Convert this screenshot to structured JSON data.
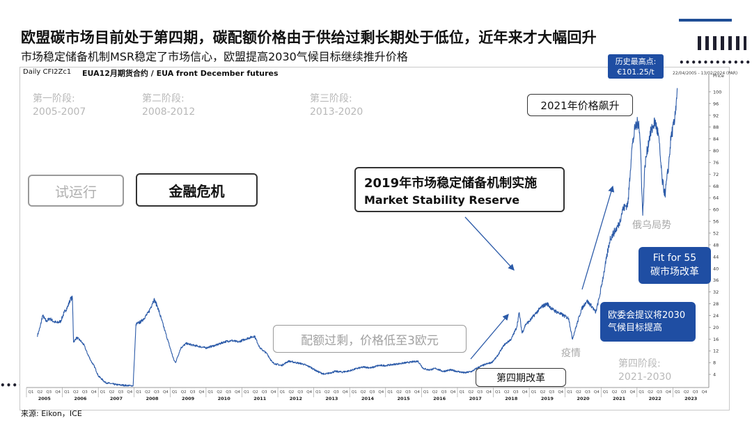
{
  "header": {
    "title": "欧盟碳市场目前处于第四期，碳配额价格由于供给过剩长期处于低位，近年来才大幅回升",
    "subtitle": "市场稳定储备机制MSR稳定了市场信心，欧盟提高2030气候目标继续推升价格"
  },
  "colors": {
    "accent": "#1f4ea3",
    "line": "#2b5aa8",
    "phase_gray": "#b8b8b8"
  },
  "chart_data": {
    "type": "line",
    "instrument": "Daily CFI2Zc1",
    "title": "EUA12月期货合约 / EUA front December futures",
    "date_range": "22/04/2005 - 13/02/2024 (PAR)",
    "ylabel": "Price",
    "unit": "Euro",
    "ylim": [
      0,
      104
    ],
    "yticks": [
      4,
      8,
      12,
      16,
      20,
      24,
      28,
      32,
      36,
      40,
      44,
      48,
      52,
      56,
      60,
      64,
      68,
      72,
      76,
      80,
      84,
      88,
      92,
      96,
      100
    ],
    "ytick_labels": [
      "4",
      "8",
      "12",
      "16",
      "20",
      "24",
      "28",
      "32",
      "36",
      "40",
      "44",
      "48",
      "52",
      "56",
      "60",
      "64",
      "68",
      "72",
      "76",
      "80",
      "84",
      "88",
      "92",
      "96",
      "100"
    ],
    "xlim": [
      2005.0,
      2024.0
    ],
    "year_labels": [
      "2005",
      "2006",
      "2007",
      "2008",
      "2009",
      "2010",
      "2011",
      "2012",
      "2013",
      "2014",
      "2015",
      "2016",
      "2017",
      "2018",
      "2019",
      "2020",
      "2021",
      "2022",
      "2023"
    ],
    "quarter_labels": [
      "Q1",
      "Q2",
      "Q3",
      "Q4"
    ],
    "series": [
      {
        "name": "EUA front December futures",
        "points": [
          [
            2005.3,
            17.0
          ],
          [
            2005.38,
            20.0
          ],
          [
            2005.45,
            24.0
          ],
          [
            2005.55,
            22.0
          ],
          [
            2005.65,
            23.0
          ],
          [
            2005.75,
            22.0
          ],
          [
            2005.85,
            21.5
          ],
          [
            2005.95,
            22.0
          ],
          [
            2006.05,
            25.0
          ],
          [
            2006.15,
            27.0
          ],
          [
            2006.22,
            29.5
          ],
          [
            2006.28,
            30.0
          ],
          [
            2006.31,
            15.0
          ],
          [
            2006.4,
            16.5
          ],
          [
            2006.5,
            15.5
          ],
          [
            2006.6,
            14.0
          ],
          [
            2006.7,
            11.0
          ],
          [
            2006.8,
            8.5
          ],
          [
            2006.9,
            6.5
          ],
          [
            2007.0,
            3.5
          ],
          [
            2007.2,
            1.2
          ],
          [
            2007.5,
            0.5
          ],
          [
            2007.8,
            0.2
          ],
          [
            2007.97,
            0.1
          ],
          [
            2008.05,
            21.0
          ],
          [
            2008.2,
            22.0
          ],
          [
            2008.4,
            25.0
          ],
          [
            2008.5,
            28.0
          ],
          [
            2008.55,
            29.5
          ],
          [
            2008.65,
            27.0
          ],
          [
            2008.75,
            23.0
          ],
          [
            2008.85,
            19.0
          ],
          [
            2008.95,
            15.0
          ],
          [
            2009.1,
            9.0
          ],
          [
            2009.15,
            8.0
          ],
          [
            2009.3,
            13.0
          ],
          [
            2009.45,
            14.5
          ],
          [
            2009.6,
            14.0
          ],
          [
            2009.8,
            13.5
          ],
          [
            2010.0,
            13.0
          ],
          [
            2010.3,
            14.0
          ],
          [
            2010.5,
            15.0
          ],
          [
            2010.7,
            15.5
          ],
          [
            2010.9,
            15.0
          ],
          [
            2011.1,
            16.0
          ],
          [
            2011.35,
            17.0
          ],
          [
            2011.5,
            13.0
          ],
          [
            2011.7,
            11.0
          ],
          [
            2011.85,
            8.0
          ],
          [
            2011.95,
            7.5
          ],
          [
            2012.1,
            7.0
          ],
          [
            2012.3,
            8.5
          ],
          [
            2012.5,
            8.0
          ],
          [
            2012.7,
            7.5
          ],
          [
            2012.9,
            6.5
          ],
          [
            2013.1,
            5.0
          ],
          [
            2013.3,
            4.0
          ],
          [
            2013.45,
            4.5
          ],
          [
            2013.6,
            5.0
          ],
          [
            2013.8,
            4.8
          ],
          [
            2014.0,
            5.2
          ],
          [
            2014.2,
            6.0
          ],
          [
            2014.4,
            6.5
          ],
          [
            2014.6,
            6.2
          ],
          [
            2014.8,
            7.0
          ],
          [
            2015.0,
            7.0
          ],
          [
            2015.3,
            7.5
          ],
          [
            2015.6,
            8.0
          ],
          [
            2015.9,
            8.5
          ],
          [
            2016.05,
            6.0
          ],
          [
            2016.2,
            5.5
          ],
          [
            2016.4,
            6.0
          ],
          [
            2016.6,
            5.0
          ],
          [
            2016.8,
            5.5
          ],
          [
            2017.0,
            5.0
          ],
          [
            2017.2,
            4.5
          ],
          [
            2017.4,
            5.0
          ],
          [
            2017.6,
            6.5
          ],
          [
            2017.8,
            7.5
          ],
          [
            2017.95,
            8.0
          ],
          [
            2018.1,
            10.0
          ],
          [
            2018.3,
            14.0
          ],
          [
            2018.5,
            16.0
          ],
          [
            2018.65,
            20.0
          ],
          [
            2018.72,
            25.0
          ],
          [
            2018.8,
            18.0
          ],
          [
            2018.9,
            21.0
          ],
          [
            2019.0,
            22.0
          ],
          [
            2019.2,
            25.0
          ],
          [
            2019.35,
            27.0
          ],
          [
            2019.5,
            28.0
          ],
          [
            2019.65,
            26.0
          ],
          [
            2019.8,
            25.0
          ],
          [
            2019.95,
            24.0
          ],
          [
            2020.1,
            23.0
          ],
          [
            2020.2,
            16.0
          ],
          [
            2020.3,
            20.0
          ],
          [
            2020.45,
            26.0
          ],
          [
            2020.6,
            29.0
          ],
          [
            2020.75,
            27.0
          ],
          [
            2020.85,
            25.0
          ],
          [
            2020.95,
            30.0
          ],
          [
            2021.1,
            40.0
          ],
          [
            2021.25,
            50.0
          ],
          [
            2021.4,
            53.0
          ],
          [
            2021.5,
            55.0
          ],
          [
            2021.6,
            60.0
          ],
          [
            2021.75,
            62.0
          ],
          [
            2021.85,
            80.0
          ],
          [
            2021.95,
            88.0
          ],
          [
            2022.05,
            90.0
          ],
          [
            2022.1,
            80.0
          ],
          [
            2022.16,
            58.0
          ],
          [
            2022.22,
            75.0
          ],
          [
            2022.35,
            85.0
          ],
          [
            2022.5,
            90.0
          ],
          [
            2022.6,
            85.0
          ],
          [
            2022.7,
            70.0
          ],
          [
            2022.78,
            65.0
          ],
          [
            2022.88,
            75.0
          ],
          [
            2022.95,
            85.0
          ],
          [
            2023.05,
            90.0
          ],
          [
            2023.1,
            98.0
          ],
          [
            2023.12,
            101.25
          ]
        ]
      }
    ],
    "peak_callout": {
      "label": "历史最高点:",
      "value": "€101.25/t"
    },
    "phases": [
      {
        "name": "第一阶段:",
        "years": "2005-2007"
      },
      {
        "name": "第二阶段:",
        "years": "2008-2012"
      },
      {
        "name": "第三阶段:",
        "years": "2013-2020"
      },
      {
        "name": "第四阶段:",
        "years": "2021-2030"
      }
    ],
    "annotations": {
      "pilot": "试运行",
      "financial_crisis": "金融危机",
      "msr_cn": "2019年市场稳定储备机制实施",
      "msr_en": "Market Stability Reserve",
      "surge_2021": "2021年价格飙升",
      "oversupply": "配额过剩，价格低至3欧元",
      "phase4_reform": "第四期改革",
      "covid": "疫情",
      "russia_ukraine": "俄乌局势",
      "fit_for_55_line1": "Fit for 55",
      "fit_for_55_line2": "碳市场改革",
      "eu_proposal_line1": "欧委会提议将2030",
      "eu_proposal_line2": "气候目标提高"
    }
  },
  "footer": {
    "source": "来源: Eikon，ICE"
  }
}
